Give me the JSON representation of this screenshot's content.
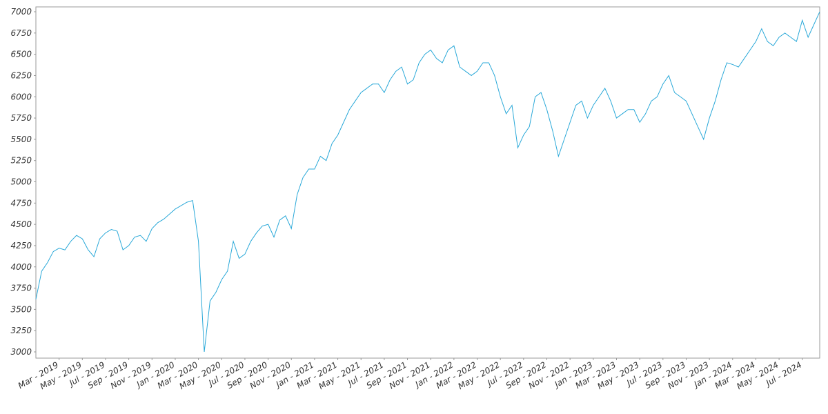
{
  "chart_data": {
    "type": "line",
    "categories": [
      null,
      null,
      null,
      null,
      "Mar - 2019",
      null,
      null,
      null,
      "May - 2019",
      null,
      null,
      null,
      "Jul - 2019",
      null,
      null,
      null,
      "Sep - 2019",
      null,
      null,
      null,
      "Nov - 2019",
      null,
      null,
      null,
      "Jan - 2020",
      null,
      null,
      null,
      "Mar - 2020",
      null,
      null,
      null,
      "May - 2020",
      null,
      null,
      null,
      "Jul - 2020",
      null,
      null,
      null,
      "Sep - 2020",
      null,
      null,
      null,
      "Nov - 2020",
      null,
      null,
      null,
      "Jan - 2021",
      null,
      null,
      null,
      "Mar - 2021",
      null,
      null,
      null,
      "May - 2021",
      null,
      null,
      null,
      "Jul - 2021",
      null,
      null,
      null,
      "Sep - 2021",
      null,
      null,
      null,
      "Nov - 2021",
      null,
      null,
      null,
      "Jan - 2022",
      null,
      null,
      null,
      "Mar - 2022",
      null,
      null,
      null,
      "May - 2022",
      null,
      null,
      null,
      "Jul - 2022",
      null,
      null,
      null,
      "Sep - 2022",
      null,
      null,
      null,
      "Nov - 2022",
      null,
      null,
      null,
      "Jan - 2023",
      null,
      null,
      null,
      "Mar - 2023",
      null,
      null,
      null,
      "May - 2023",
      null,
      null,
      null,
      "Jul - 2023",
      null,
      null,
      null,
      "Sep - 2023",
      null,
      null,
      null,
      "Nov - 2023",
      null,
      null,
      null,
      "Jan - 2024",
      null,
      null,
      null,
      "Mar - 2024",
      null,
      null,
      null,
      "May - 2024",
      null,
      null,
      null,
      "Jul - 2024",
      null,
      null,
      null
    ],
    "values": [
      3620,
      3950,
      4050,
      4180,
      4220,
      4200,
      4300,
      4370,
      4330,
      4200,
      4120,
      4330,
      4400,
      4440,
      4420,
      4200,
      4250,
      4350,
      4370,
      4300,
      4450,
      4520,
      4560,
      4620,
      4680,
      4720,
      4760,
      4780,
      4300,
      3000,
      3600,
      3700,
      3850,
      3950,
      4300,
      4100,
      4150,
      4300,
      4400,
      4480,
      4500,
      4350,
      4550,
      4600,
      4450,
      4850,
      5050,
      5150,
      5150,
      5300,
      5250,
      5450,
      5550,
      5700,
      5850,
      5950,
      6050,
      6100,
      6150,
      6150,
      6050,
      6200,
      6300,
      6350,
      6150,
      6200,
      6400,
      6500,
      6550,
      6450,
      6400,
      6550,
      6600,
      6350,
      6300,
      6250,
      6300,
      6400,
      6400,
      6250,
      6000,
      5800,
      5900,
      5400,
      5550,
      5650,
      6000,
      6050,
      5850,
      5600,
      5300,
      5500,
      5700,
      5900,
      5950,
      5750,
      5900,
      6000,
      6100,
      5950,
      5750,
      5800,
      5850,
      5850,
      5700,
      5800,
      5950,
      6000,
      6150,
      6250,
      6050,
      6000,
      5950,
      5800,
      5650,
      5500,
      5750,
      5950,
      6200,
      6400,
      6380,
      6350,
      6450,
      6550,
      6650,
      6800,
      6650,
      6600,
      6700,
      6750,
      6700,
      6650,
      6900,
      6700,
      6850,
      7000
    ],
    "color": "#29a8d8",
    "ylim": [
      2927,
      7057
    ],
    "yticks": [
      3000,
      3250,
      3500,
      3750,
      4000,
      4250,
      4500,
      4750,
      5000,
      5250,
      5500,
      5750,
      6000,
      6250,
      6500,
      6750,
      7000
    ]
  }
}
